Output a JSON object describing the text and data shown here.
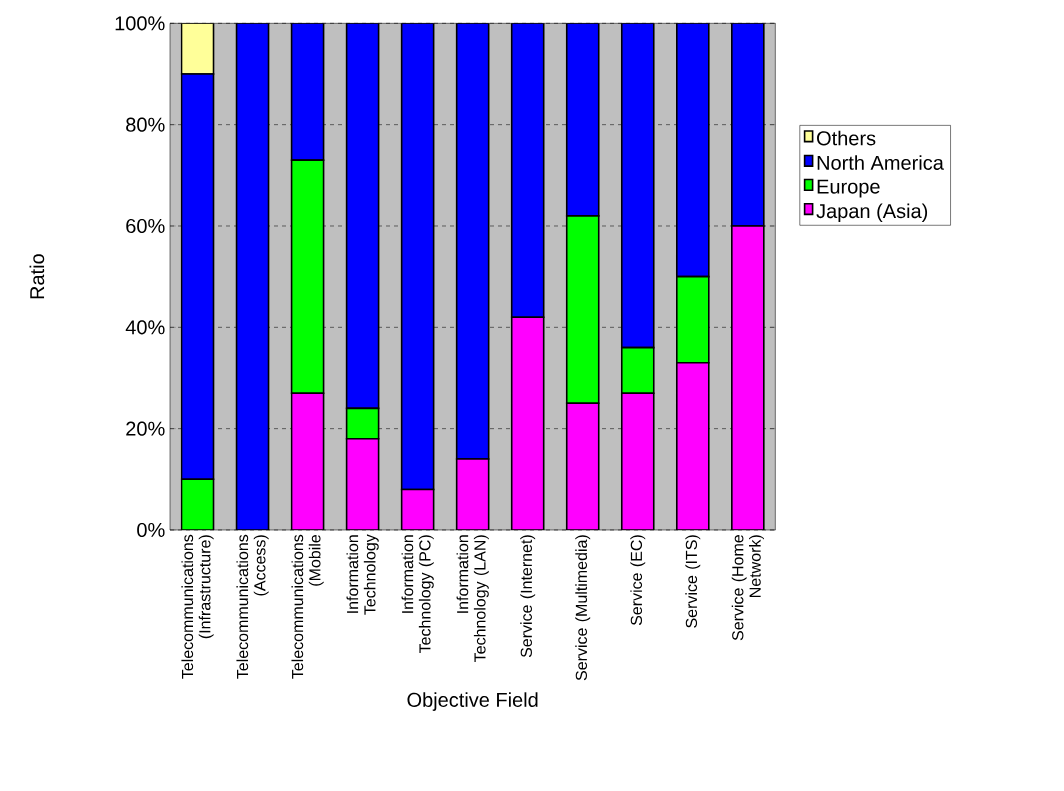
{
  "chart_data": {
    "type": "bar",
    "stacked": true,
    "xlabel": "Objective Field",
    "ylabel": "Ratio",
    "categories": [
      "Telecommunications (Infrastructure)",
      "Telecommunications (Access)",
      "Telecommunications (Mobile",
      "Information Technology",
      "Information Technology (PC)",
      "Information Technology (LAN)",
      "Service (Internet)",
      "Service (Multimedia)",
      "Service (EC)",
      "Service (ITS)",
      "Service (Home Network)"
    ],
    "series": [
      {
        "name": "Japan (Asia)",
        "color": "#ff00ff",
        "values": [
          0,
          0,
          27,
          18,
          8,
          14,
          42,
          25,
          27,
          33,
          60
        ]
      },
      {
        "name": "Europe",
        "color": "#00ff00",
        "values": [
          10,
          0,
          46,
          6,
          0,
          0,
          0,
          37,
          9,
          17,
          0
        ]
      },
      {
        "name": "North America",
        "color": "#0000ff",
        "values": [
          80,
          100,
          27,
          76,
          92,
          86,
          58,
          38,
          64,
          50,
          40
        ]
      },
      {
        "name": "Others",
        "color": "#ffff99",
        "values": [
          10,
          0,
          0,
          0,
          0,
          0,
          0,
          0,
          0,
          0,
          0
        ]
      }
    ],
    "ylim": [
      0,
      100
    ],
    "yticks": [
      {
        "value": 0,
        "label": "0%"
      },
      {
        "value": 20,
        "label": "20%"
      },
      {
        "value": 40,
        "label": "40%"
      },
      {
        "value": 60,
        "label": "60%"
      },
      {
        "value": 80,
        "label": "80%"
      },
      {
        "value": 100,
        "label": "100%"
      }
    ],
    "grid": "y",
    "legend": "right"
  }
}
